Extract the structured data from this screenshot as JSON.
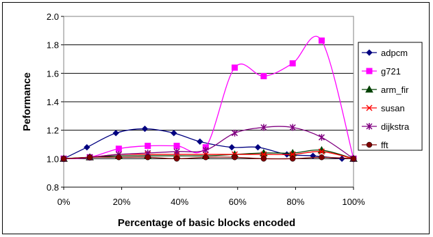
{
  "chart_data": {
    "type": "line",
    "title": "",
    "xlabel": "Percentage of basic blocks encoded",
    "ylabel": "Peformance",
    "ylim": [
      0.8,
      2.0
    ],
    "yticks": [
      0.8,
      1.0,
      1.2,
      1.4,
      1.6,
      1.8,
      2.0
    ],
    "ytick_labels": [
      "0.8",
      "1.0",
      "1.2",
      "1.4",
      "1.6",
      "1.8",
      "2.0"
    ],
    "xlim": [
      0,
      100
    ],
    "xticks": [
      0,
      20,
      40,
      60,
      80,
      100
    ],
    "xtick_labels": [
      "0%",
      "20%",
      "40%",
      "60%",
      "80%",
      "100%"
    ],
    "grid": "horizontal",
    "legend_position": "right",
    "series": [
      {
        "name": "adpcm",
        "color": "#000080",
        "marker": "diamond",
        "x": [
          0,
          8,
          18,
          28,
          38,
          47,
          58,
          67,
          77,
          86,
          96
        ],
        "y": [
          1.0,
          1.08,
          1.18,
          1.21,
          1.18,
          1.12,
          1.08,
          1.08,
          1.03,
          1.02,
          1.0
        ]
      },
      {
        "name": "g721",
        "color": "#ff00ff",
        "marker": "square",
        "x": [
          0,
          9,
          19,
          29,
          39,
          49,
          59,
          69,
          79,
          89,
          100
        ],
        "y": [
          1.0,
          1.01,
          1.07,
          1.09,
          1.09,
          1.08,
          1.64,
          1.58,
          1.67,
          1.83,
          1.0
        ]
      },
      {
        "name": "arm_fir",
        "color": "#004000",
        "marker": "triangle",
        "x": [
          0,
          9,
          19,
          29,
          39,
          49,
          59,
          69,
          79,
          89,
          100
        ],
        "y": [
          1.0,
          1.01,
          1.02,
          1.02,
          1.02,
          1.02,
          1.03,
          1.04,
          1.04,
          1.06,
          1.0
        ]
      },
      {
        "name": "susan",
        "color": "#ff0000",
        "marker": "x",
        "x": [
          0,
          9,
          19,
          29,
          39,
          49,
          59,
          69,
          79,
          89,
          100
        ],
        "y": [
          1.0,
          1.01,
          1.03,
          1.03,
          1.03,
          1.03,
          1.03,
          1.03,
          1.03,
          1.05,
          1.0
        ]
      },
      {
        "name": "dijkstra",
        "color": "#800080",
        "marker": "star",
        "x": [
          0,
          9,
          19,
          29,
          39,
          49,
          59,
          69,
          79,
          89,
          100
        ],
        "y": [
          1.0,
          1.01,
          1.03,
          1.04,
          1.05,
          1.06,
          1.18,
          1.22,
          1.22,
          1.15,
          1.0
        ]
      },
      {
        "name": "fft",
        "color": "#800000",
        "marker": "circle",
        "x": [
          0,
          9,
          19,
          29,
          39,
          49,
          59,
          69,
          79,
          89,
          100
        ],
        "y": [
          1.0,
          1.01,
          1.01,
          1.01,
          1.0,
          1.01,
          1.01,
          1.0,
          1.0,
          1.01,
          1.0
        ]
      }
    ]
  }
}
